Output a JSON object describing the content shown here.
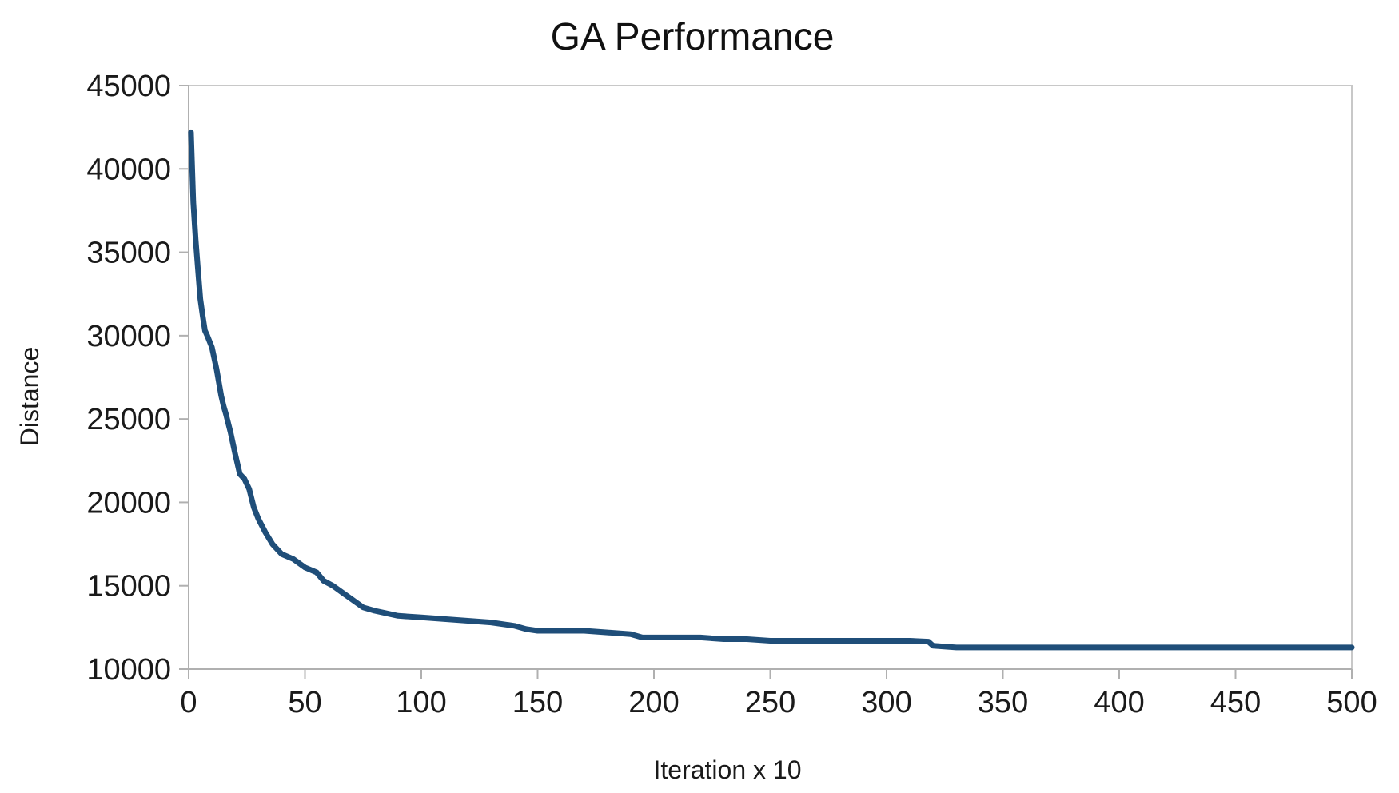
{
  "chart_data": {
    "type": "line",
    "title": "GA Performance",
    "xlabel": "Iteration x 10",
    "ylabel": "Distance",
    "xlim": [
      0,
      500
    ],
    "ylim": [
      10000,
      45000
    ],
    "x_ticks": [
      0,
      50,
      100,
      150,
      200,
      250,
      300,
      350,
      400,
      450,
      500
    ],
    "y_ticks": [
      10000,
      15000,
      20000,
      25000,
      30000,
      35000,
      40000,
      45000
    ],
    "x_tick_labels": [
      "0",
      "50",
      "100",
      "150",
      "200",
      "250",
      "300",
      "350",
      "400",
      "450",
      "500"
    ],
    "y_tick_labels": [
      "10000",
      "15000",
      "20000",
      "25000",
      "30000",
      "35000",
      "40000",
      "45000"
    ],
    "grid": false,
    "legend": "none",
    "line_color": "#1f4e79",
    "series": [
      {
        "x": [
          1,
          2,
          3,
          4,
          5,
          6,
          7,
          8,
          10,
          12,
          14,
          15,
          16,
          18,
          20,
          22,
          24,
          26,
          28,
          30,
          33,
          36,
          40,
          45,
          50,
          55,
          58,
          62,
          66,
          70,
          75,
          80,
          90,
          100,
          110,
          120,
          130,
          140,
          145,
          150,
          160,
          170,
          180,
          190,
          195,
          200,
          210,
          220,
          230,
          240,
          250,
          270,
          290,
          310,
          318,
          320,
          330,
          340,
          350,
          380,
          400,
          430,
          460,
          500
        ],
        "y": [
          42200,
          38000,
          35800,
          34000,
          32200,
          31200,
          30300,
          30000,
          29300,
          28000,
          26400,
          25800,
          25300,
          24200,
          22900,
          21700,
          21400,
          20800,
          19700,
          19000,
          18200,
          17500,
          16900,
          16600,
          16100,
          15800,
          15300,
          15000,
          14600,
          14200,
          13700,
          13500,
          13200,
          13100,
          13000,
          12900,
          12800,
          12600,
          12400,
          12300,
          12300,
          12300,
          12200,
          12100,
          11900,
          11900,
          11900,
          11900,
          11800,
          11800,
          11700,
          11700,
          11700,
          11700,
          11650,
          11400,
          11300,
          11300,
          11300,
          11300,
          11300,
          11300,
          11300,
          11300
        ]
      }
    ]
  }
}
